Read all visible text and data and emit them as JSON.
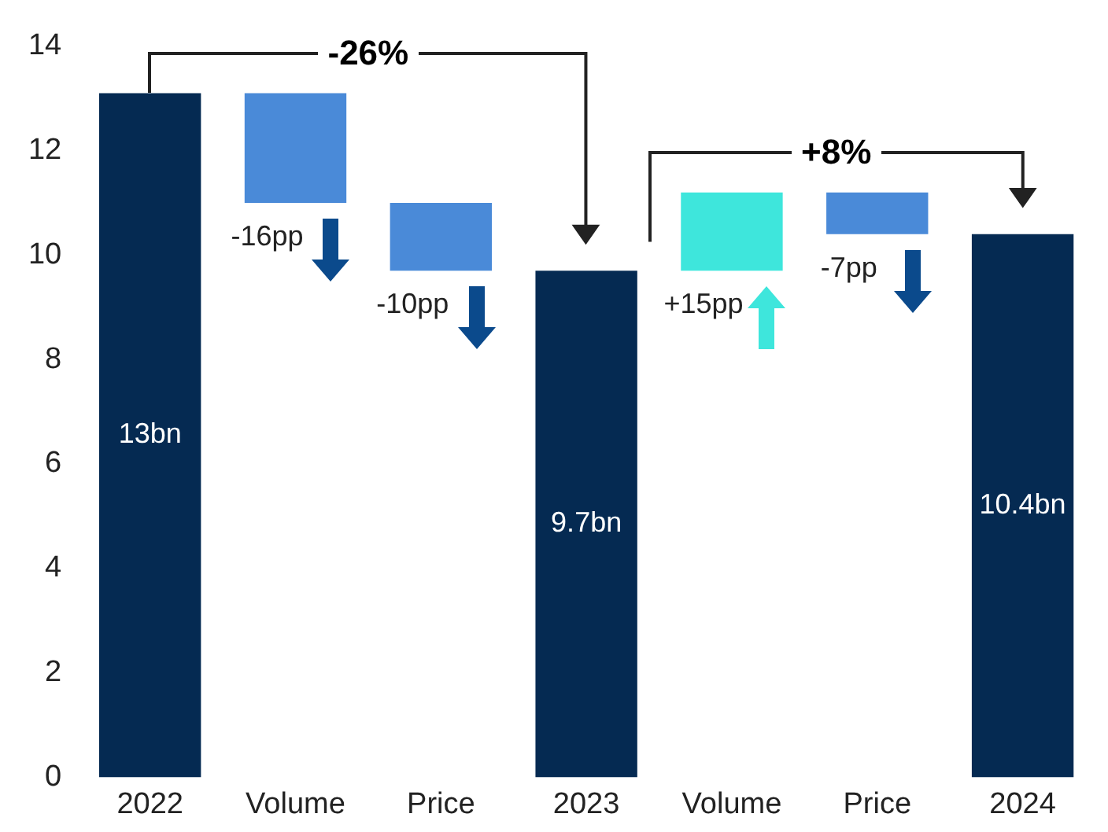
{
  "chart_data": {
    "type": "bar",
    "categories": [
      "2022",
      "Volume",
      "Price",
      "2023",
      "Volume",
      "Price",
      "2024"
    ],
    "values": [
      13.1,
      2.1,
      1.3,
      9.7,
      1.5,
      0.8,
      10.4
    ],
    "base": [
      0,
      11.0,
      9.7,
      0,
      9.7,
      10.4,
      0
    ],
    "colors": [
      "#052a52",
      "#4a8ad8",
      "#4a8ad8",
      "#052a52",
      "#3ee6dc",
      "#4a8ad8",
      "#052a52"
    ],
    "value_labels": [
      "13bn",
      null,
      null,
      "9.7bn",
      null,
      null,
      "10.4bn"
    ],
    "annotations": [
      "-26%",
      "+8%",
      "-16pp",
      "-10pp",
      "+15pp",
      "-7pp"
    ],
    "ylim": [
      0,
      14
    ],
    "yticks": [
      0,
      2,
      4,
      6,
      8,
      10,
      12,
      14
    ],
    "grid": false,
    "legend": false
  }
}
